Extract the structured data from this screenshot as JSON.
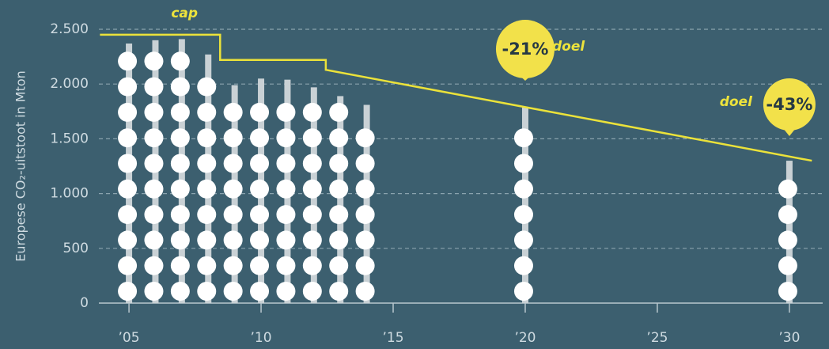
{
  "chart_data": {
    "type": "bar",
    "y_label": "Europese CO₂-uitstoot in Mton",
    "x": [
      2005,
      2006,
      2007,
      2008,
      2009,
      2010,
      2011,
      2012,
      2013,
      2014,
      2020,
      2030
    ],
    "values": [
      2370,
      2400,
      2410,
      2270,
      1990,
      2050,
      2040,
      1970,
      1890,
      1810,
      1785,
      1300
    ],
    "color": "#c9d1d5",
    "dot_color": "#ffffff",
    "cap": {
      "name": "cap",
      "color": "#ebe23a",
      "x": [
        2003.9,
        2008.45,
        2008.45,
        2012.45,
        2012.45,
        2030.85
      ],
      "values": [
        2450,
        2450,
        2220,
        2220,
        2130,
        1300
      ]
    },
    "annotations": [
      {
        "text": "-21%",
        "label": "doel",
        "x": 2020
      },
      {
        "text": "-43%",
        "label": "doel",
        "x": 2030
      }
    ],
    "bubble_color": "#f2e14a",
    "xlim": [
      2003.86,
      2031.26
    ],
    "ylim": [
      0,
      2500
    ],
    "xticks": [
      {
        "value": 2005,
        "label": "’05"
      },
      {
        "value": 2010,
        "label": "’10"
      },
      {
        "value": 2015,
        "label": "’15"
      },
      {
        "value": 2020,
        "label": "’20"
      },
      {
        "value": 2025,
        "label": "’25"
      },
      {
        "value": 2030,
        "label": "’30"
      }
    ],
    "yticks": [
      0,
      500,
      {
        "value": 1000,
        "label": "1.000"
      },
      {
        "value": 1500,
        "label": "1.500"
      },
      {
        "value": 2000,
        "label": "2.000"
      },
      {
        "value": 2500,
        "label": "2.500"
      }
    ],
    "grid": true
  }
}
